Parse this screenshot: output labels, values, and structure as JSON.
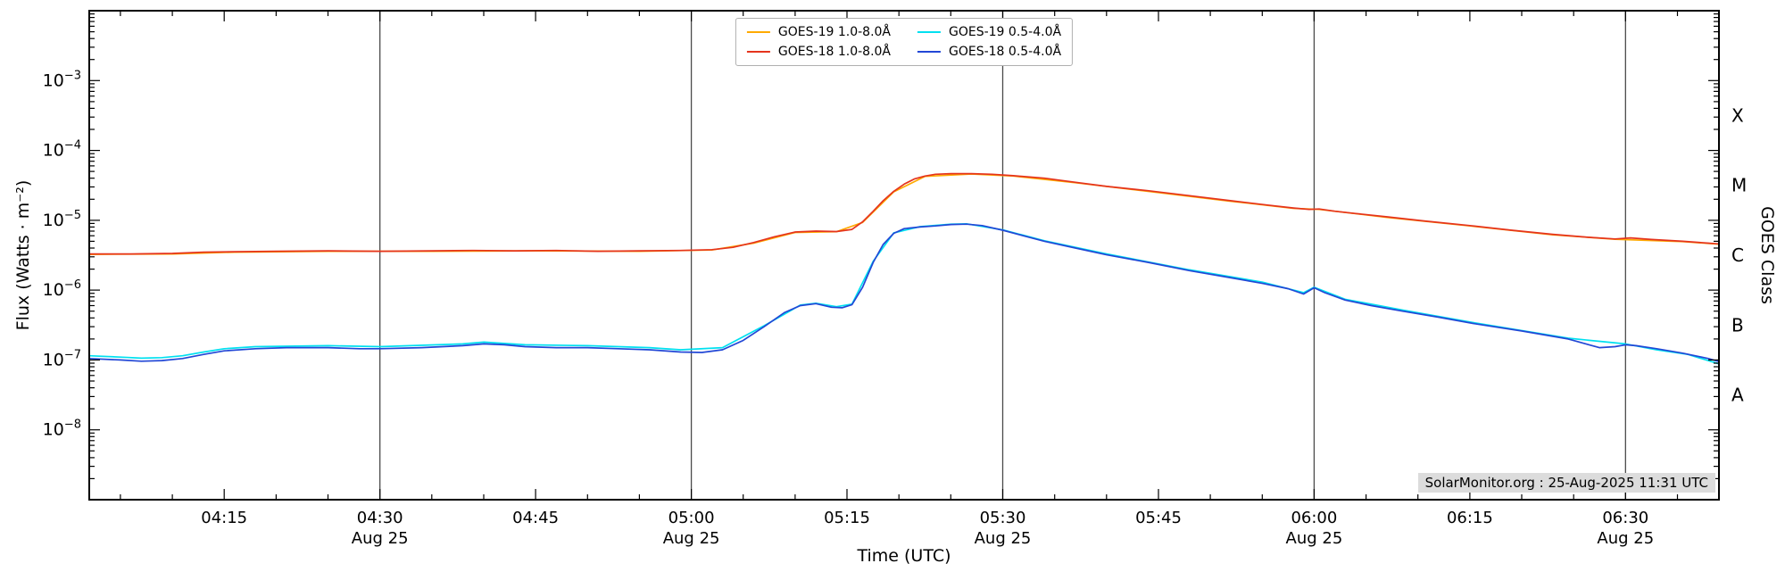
{
  "annotation": {
    "text": "SolarMonitor.org : 25-Aug-2025 11:31 UTC"
  },
  "chart_data": {
    "type": "line",
    "title": "",
    "xlabel": "Time (UTC)",
    "ylabel": "Flux (Watts · m⁻²)",
    "ylabel_right": "GOES Class",
    "x_range_hours": [
      4.0333,
      6.65
    ],
    "y_log_range": [
      -9,
      -2
    ],
    "x_minor_step_minutes": 5,
    "grid": "vertical-30min-day-lines",
    "legend_position": "top-center",
    "legend_columns": 2,
    "x_major_ticks": [
      {
        "hours": 4.25,
        "label": "04:15"
      },
      {
        "hours": 4.5,
        "label": "04:30"
      },
      {
        "hours": 4.75,
        "label": "04:45"
      },
      {
        "hours": 5.0,
        "label": "05:00"
      },
      {
        "hours": 5.25,
        "label": "05:15"
      },
      {
        "hours": 5.5,
        "label": "05:30"
      },
      {
        "hours": 5.75,
        "label": "05:45"
      },
      {
        "hours": 6.0,
        "label": "06:00"
      },
      {
        "hours": 6.25,
        "label": "06:15"
      },
      {
        "hours": 6.5,
        "label": "06:30"
      }
    ],
    "x_day_lines": [
      {
        "hours": 4.5,
        "label": "Aug 25"
      },
      {
        "hours": 5.0,
        "label": "Aug 25"
      },
      {
        "hours": 5.5,
        "label": "Aug 25"
      },
      {
        "hours": 6.0,
        "label": "Aug 25"
      },
      {
        "hours": 6.5,
        "label": "Aug 25"
      }
    ],
    "y_major_ticks": [
      {
        "exp": -3,
        "exp_label": "−3",
        "label": "10⁻³"
      },
      {
        "exp": -4,
        "exp_label": "−4",
        "label": "10⁻⁴"
      },
      {
        "exp": -5,
        "exp_label": "−5",
        "label": "10⁻⁵"
      },
      {
        "exp": -6,
        "exp_label": "−6",
        "label": "10⁻⁶"
      },
      {
        "exp": -7,
        "exp_label": "−7",
        "label": "10⁻⁷"
      },
      {
        "exp": -8,
        "exp_label": "−8",
        "label": "10⁻⁸"
      }
    ],
    "goes_classes": [
      {
        "label": "X",
        "log_center": -3.5
      },
      {
        "label": "M",
        "log_center": -4.5
      },
      {
        "label": "C",
        "log_center": -5.5
      },
      {
        "label": "B",
        "log_center": -6.5
      },
      {
        "label": "A",
        "log_center": -7.5
      }
    ],
    "draw_order": [
      0,
      2,
      1,
      3
    ],
    "series": [
      {
        "id": "goes19-long",
        "name": "GOES-19 1.0-8.0Å",
        "color": "#ffaa00",
        "points": [
          [
            4.033,
            3.25e-06
          ],
          [
            4.167,
            3.3e-06
          ],
          [
            4.267,
            3.5e-06
          ],
          [
            4.417,
            3.6e-06
          ],
          [
            4.583,
            3.6e-06
          ],
          [
            4.75,
            3.65e-06
          ],
          [
            4.917,
            3.6e-06
          ],
          [
            5.033,
            3.75e-06
          ],
          [
            5.1,
            4.7e-06
          ],
          [
            5.167,
            6.7e-06
          ],
          [
            5.233,
            6.85e-06
          ],
          [
            5.275,
            9.3e-06
          ],
          [
            5.325,
            2.55e-05
          ],
          [
            5.375,
            4.25e-05
          ],
          [
            5.45,
            4.6e-05
          ],
          [
            5.517,
            4.3e-05
          ],
          [
            5.617,
            3.45e-05
          ],
          [
            5.733,
            2.6e-05
          ],
          [
            5.867,
            1.87e-05
          ],
          [
            5.967,
            1.48e-05
          ],
          [
            6.008,
            1.43e-05
          ],
          [
            6.117,
            1.1e-05
          ],
          [
            6.25,
            8.3e-06
          ],
          [
            6.383,
            6.2e-06
          ],
          [
            6.483,
            5.35e-06
          ],
          [
            6.592,
            4.95e-06
          ],
          [
            6.65,
            4.55e-06
          ]
        ]
      },
      {
        "id": "goes18-long",
        "name": "GOES-18 1.0-8.0Å",
        "color": "#e5341d",
        "points": [
          [
            4.033,
            3.3e-06
          ],
          [
            4.1,
            3.3e-06
          ],
          [
            4.167,
            3.35e-06
          ],
          [
            4.217,
            3.5e-06
          ],
          [
            4.267,
            3.55e-06
          ],
          [
            4.333,
            3.6e-06
          ],
          [
            4.417,
            3.65e-06
          ],
          [
            4.5,
            3.6e-06
          ],
          [
            4.583,
            3.65e-06
          ],
          [
            4.65,
            3.7e-06
          ],
          [
            4.717,
            3.65e-06
          ],
          [
            4.783,
            3.7e-06
          ],
          [
            4.85,
            3.6e-06
          ],
          [
            4.917,
            3.65e-06
          ],
          [
            4.983,
            3.7e-06
          ],
          [
            5.033,
            3.8e-06
          ],
          [
            5.067,
            4.1e-06
          ],
          [
            5.1,
            4.8e-06
          ],
          [
            5.133,
            5.8e-06
          ],
          [
            5.167,
            6.8e-06
          ],
          [
            5.2,
            7e-06
          ],
          [
            5.233,
            6.9e-06
          ],
          [
            5.258,
            7.4e-06
          ],
          [
            5.275,
            9.5e-06
          ],
          [
            5.292,
            1.35e-05
          ],
          [
            5.308,
            1.9e-05
          ],
          [
            5.325,
            2.6e-05
          ],
          [
            5.342,
            3.3e-05
          ],
          [
            5.358,
            3.9e-05
          ],
          [
            5.375,
            4.3e-05
          ],
          [
            5.392,
            4.55e-05
          ],
          [
            5.417,
            4.65e-05
          ],
          [
            5.45,
            4.65e-05
          ],
          [
            5.483,
            4.55e-05
          ],
          [
            5.517,
            4.35e-05
          ],
          [
            5.567,
            4e-05
          ],
          [
            5.617,
            3.5e-05
          ],
          [
            5.667,
            3.05e-05
          ],
          [
            5.733,
            2.65e-05
          ],
          [
            5.8,
            2.25e-05
          ],
          [
            5.867,
            1.9e-05
          ],
          [
            5.925,
            1.65e-05
          ],
          [
            5.967,
            1.5e-05
          ],
          [
            5.992,
            1.43e-05
          ],
          [
            6.008,
            1.45e-05
          ],
          [
            6.033,
            1.35e-05
          ],
          [
            6.067,
            1.25e-05
          ],
          [
            6.117,
            1.12e-05
          ],
          [
            6.175,
            9.8e-06
          ],
          [
            6.25,
            8.4e-06
          ],
          [
            6.317,
            7.2e-06
          ],
          [
            6.383,
            6.3e-06
          ],
          [
            6.442,
            5.7e-06
          ],
          [
            6.483,
            5.4e-06
          ],
          [
            6.508,
            5.6e-06
          ],
          [
            6.542,
            5.3e-06
          ],
          [
            6.592,
            5e-06
          ],
          [
            6.633,
            4.7e-06
          ],
          [
            6.65,
            4.6e-06
          ]
        ]
      },
      {
        "id": "goes19-short",
        "name": "GOES-19 0.5-4.0Å",
        "color": "#00e0f0",
        "points": [
          [
            4.033,
            1.15e-07
          ],
          [
            4.083,
            1.1e-07
          ],
          [
            4.117,
            1.06e-07
          ],
          [
            4.15,
            1.08e-07
          ],
          [
            4.183,
            1.15e-07
          ],
          [
            4.217,
            1.3e-07
          ],
          [
            4.25,
            1.45e-07
          ],
          [
            4.3,
            1.55e-07
          ],
          [
            4.417,
            1.6e-07
          ],
          [
            4.5,
            1.55e-07
          ],
          [
            4.633,
            1.7e-07
          ],
          [
            4.667,
            1.8e-07
          ],
          [
            4.733,
            1.65e-07
          ],
          [
            4.833,
            1.6e-07
          ],
          [
            4.933,
            1.5e-07
          ],
          [
            4.983,
            1.4e-07
          ],
          [
            5.05,
            1.5e-07
          ],
          [
            5.117,
            3.1e-07
          ],
          [
            5.175,
            6.1e-07
          ],
          [
            5.2,
            6.5e-07
          ],
          [
            5.233,
            5.8e-07
          ],
          [
            5.258,
            6.3e-07
          ],
          [
            5.292,
            2.6e-06
          ],
          [
            5.325,
            6.6e-06
          ],
          [
            5.367,
            8.1e-06
          ],
          [
            5.417,
            8.8e-06
          ],
          [
            5.442,
            8.9e-06
          ],
          [
            5.5,
            7.3e-06
          ],
          [
            5.567,
            5.1e-06
          ],
          [
            5.667,
            3.3e-06
          ],
          [
            5.8,
            1.95e-06
          ],
          [
            5.917,
            1.3e-06
          ],
          [
            5.983,
            9.2e-07
          ],
          [
            6.0,
            1.1e-06
          ],
          [
            6.05,
            7.4e-07
          ],
          [
            6.142,
            5.2e-07
          ],
          [
            6.258,
            3.4e-07
          ],
          [
            6.408,
            2.05e-07
          ],
          [
            6.5,
            1.7e-07
          ],
          [
            6.55,
            1.4e-07
          ],
          [
            6.6,
            1.2e-07
          ],
          [
            6.65,
            8.8e-08
          ]
        ]
      },
      {
        "id": "goes18-short",
        "name": "GOES-18 0.5-4.0Å",
        "color": "#2247d6",
        "points": [
          [
            4.033,
            1.05e-07
          ],
          [
            4.083,
            1e-07
          ],
          [
            4.117,
            9.6e-08
          ],
          [
            4.15,
            9.8e-08
          ],
          [
            4.183,
            1.05e-07
          ],
          [
            4.217,
            1.2e-07
          ],
          [
            4.25,
            1.35e-07
          ],
          [
            4.3,
            1.45e-07
          ],
          [
            4.35,
            1.5e-07
          ],
          [
            4.417,
            1.5e-07
          ],
          [
            4.467,
            1.45e-07
          ],
          [
            4.5,
            1.45e-07
          ],
          [
            4.567,
            1.5e-07
          ],
          [
            4.633,
            1.6e-07
          ],
          [
            4.667,
            1.7e-07
          ],
          [
            4.7,
            1.65e-07
          ],
          [
            4.733,
            1.55e-07
          ],
          [
            4.783,
            1.5e-07
          ],
          [
            4.833,
            1.5e-07
          ],
          [
            4.883,
            1.45e-07
          ],
          [
            4.933,
            1.4e-07
          ],
          [
            4.983,
            1.3e-07
          ],
          [
            5.017,
            1.28e-07
          ],
          [
            5.05,
            1.4e-07
          ],
          [
            5.083,
            1.9e-07
          ],
          [
            5.117,
            3e-07
          ],
          [
            5.15,
            4.8e-07
          ],
          [
            5.175,
            6e-07
          ],
          [
            5.2,
            6.4e-07
          ],
          [
            5.225,
            5.7e-07
          ],
          [
            5.242,
            5.6e-07
          ],
          [
            5.258,
            6.2e-07
          ],
          [
            5.275,
            1.1e-06
          ],
          [
            5.292,
            2.5e-06
          ],
          [
            5.308,
            4.5e-06
          ],
          [
            5.325,
            6.5e-06
          ],
          [
            5.342,
            7.6e-06
          ],
          [
            5.367,
            8e-06
          ],
          [
            5.392,
            8.3e-06
          ],
          [
            5.417,
            8.7e-06
          ],
          [
            5.442,
            8.8e-06
          ],
          [
            5.467,
            8.4e-06
          ],
          [
            5.5,
            7.2e-06
          ],
          [
            5.533,
            6e-06
          ],
          [
            5.567,
            5e-06
          ],
          [
            5.617,
            4e-06
          ],
          [
            5.667,
            3.2e-06
          ],
          [
            5.733,
            2.5e-06
          ],
          [
            5.8,
            1.9e-06
          ],
          [
            5.867,
            1.5e-06
          ],
          [
            5.917,
            1.25e-06
          ],
          [
            5.958,
            1.05e-06
          ],
          [
            5.983,
            8.8e-07
          ],
          [
            6.0,
            1.08e-06
          ],
          [
            6.017,
            9.2e-07
          ],
          [
            6.05,
            7.2e-07
          ],
          [
            6.092,
            6e-07
          ],
          [
            6.142,
            5e-07
          ],
          [
            6.2,
            4.1e-07
          ],
          [
            6.258,
            3.3e-07
          ],
          [
            6.333,
            2.6e-07
          ],
          [
            6.408,
            2e-07
          ],
          [
            6.458,
            1.5e-07
          ],
          [
            6.483,
            1.55e-07
          ],
          [
            6.5,
            1.65e-07
          ],
          [
            6.517,
            1.6e-07
          ],
          [
            6.55,
            1.45e-07
          ],
          [
            6.592,
            1.25e-07
          ],
          [
            6.633,
            1.05e-07
          ],
          [
            6.65,
            9.5e-08
          ]
        ]
      }
    ]
  }
}
